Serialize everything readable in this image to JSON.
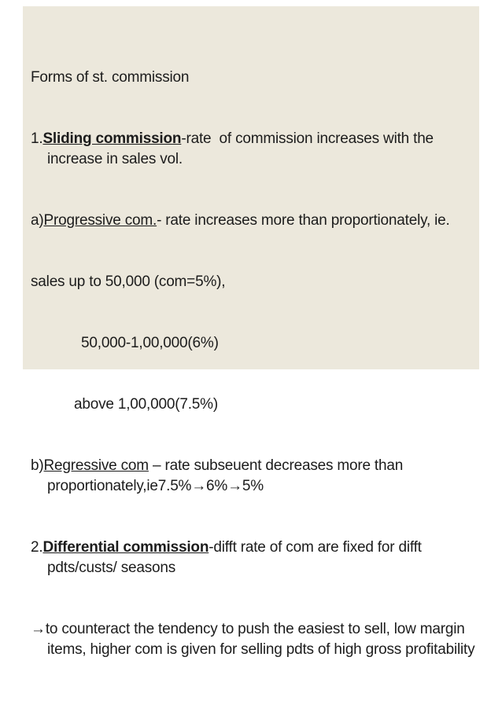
{
  "page": {
    "background_color": "#ffffff",
    "slide_background_color": "#ece8dc",
    "text_color": "#1c1c1c"
  },
  "content": {
    "title": "Forms of st. commission",
    "item1": {
      "num": "1.",
      "term": "Sliding commission",
      "rest": "-rate  of commission increases with the increase in sales vol."
    },
    "item_a": {
      "num": "a)",
      "term": "Progressive com.",
      "rest": "- rate increases more than proportionately, ie."
    },
    "sales_line1": "sales up to 50,000 (com=5%),",
    "sales_line2": "50,000-1,00,000(6%)",
    "sales_line3": "above 1,00,000(7.5%)",
    "item_b": {
      "num": "b)",
      "term": "Regressive com",
      "rest": " – rate subseuent decreases more than proportionately,ie7.5%→6%→5%"
    },
    "item2": {
      "num": "2.",
      "term": "Differential commission",
      "rest": "-difft rate of com are fixed for difft pdts/custs/ seasons"
    },
    "arrow_item": {
      "arrow": "→",
      "text": "to counteract the tendency to push the easiest to sell, low margin items, higher com is given for selling pdts of high gross profitability"
    }
  }
}
